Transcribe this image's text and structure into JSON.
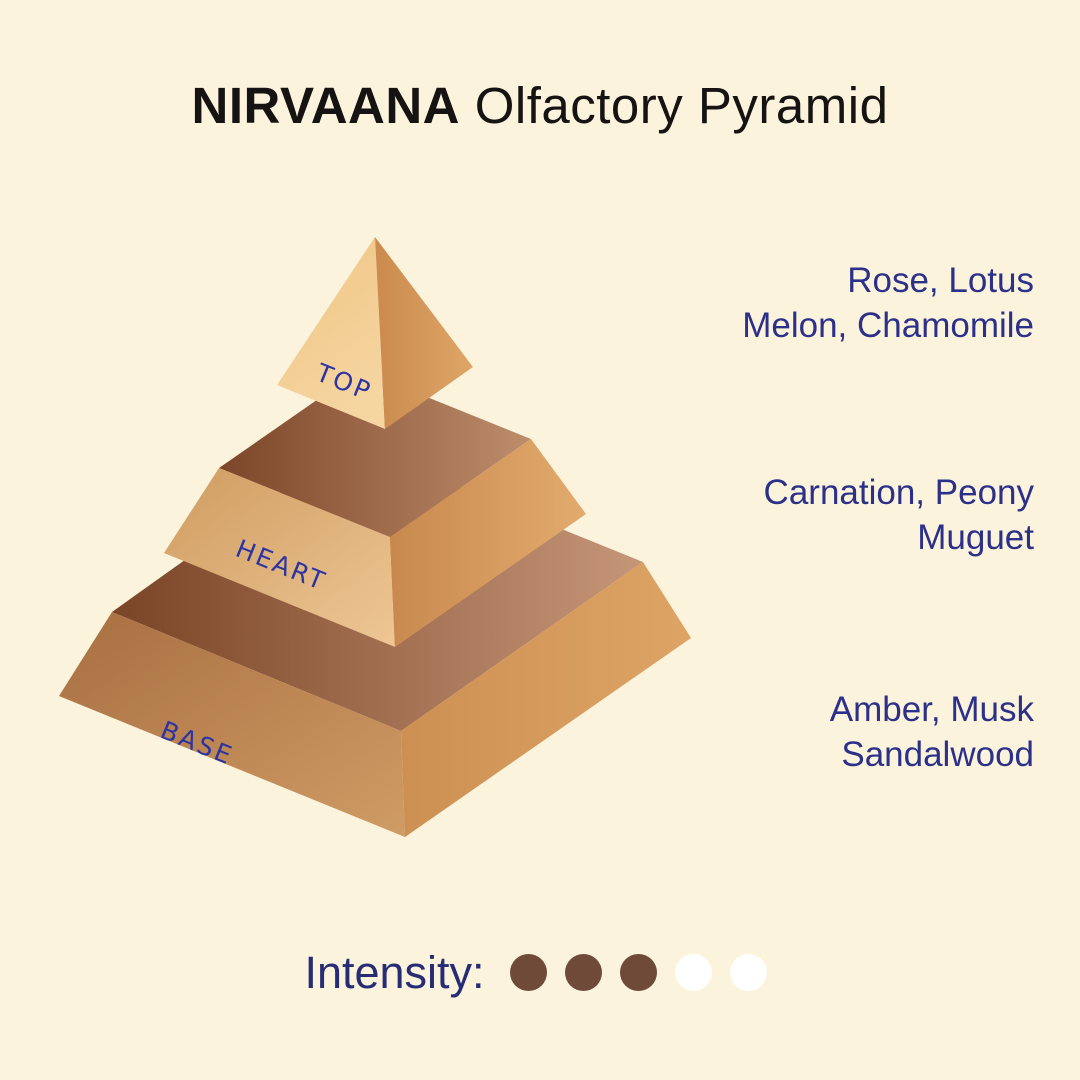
{
  "title": {
    "brand": "NIRVAANA",
    "subtitle": "Olfactory Pyramid"
  },
  "pyramid": {
    "tiers": [
      {
        "key": "top",
        "label": "TOP"
      },
      {
        "key": "heart",
        "label": "HEART"
      },
      {
        "key": "base",
        "label": "BASE"
      }
    ]
  },
  "notes": [
    {
      "tier": "top",
      "line1": "Rose, Lotus",
      "line2": "Melon, Chamomile"
    },
    {
      "tier": "heart",
      "line1": "Carnation, Peony",
      "line2": "Muguet"
    },
    {
      "tier": "base",
      "line1": "Amber, Musk",
      "line2": "Sandalwood"
    }
  ],
  "intensity": {
    "label": "Intensity:",
    "filled": 3,
    "total": 5,
    "filled_color": "#6f4a39",
    "empty_color": "#ffffff"
  },
  "colors": {
    "background": "#fcf3dd",
    "title_text": "#161413",
    "notes_text": "#2b3089",
    "tier_label_text": "#2c34a2",
    "intensity_text": "#262d74",
    "pyramid_light_face": "#f1c98b",
    "pyramid_mid_face": "#d9a76c",
    "pyramid_dark_face": "#a86f41",
    "pyramid_top_surface_dark": "#7a4426",
    "pyramid_top_surface_light": "#c69678",
    "pyramid_right_face": "#d59a5e"
  }
}
